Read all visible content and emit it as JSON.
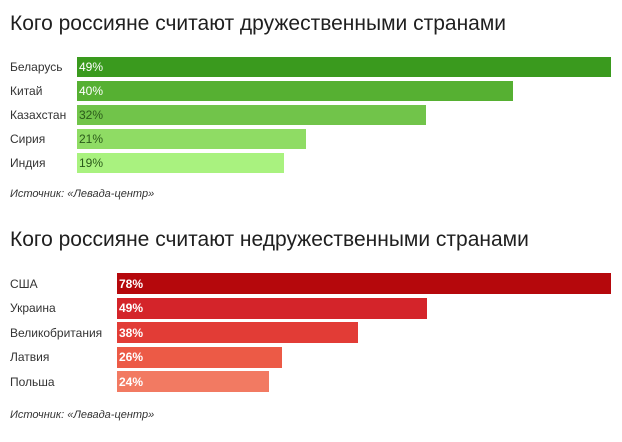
{
  "chart_data": [
    {
      "type": "bar",
      "orientation": "horizontal",
      "title": "Кого россияне считают дружественными странами",
      "categories": [
        "Беларусь",
        "Китай",
        "Казахстан",
        "Сирия",
        "Индия"
      ],
      "values": [
        49,
        40,
        32,
        21,
        19
      ],
      "value_labels": [
        "49%",
        "40%",
        "32%",
        "21%",
        "19%"
      ],
      "unit": "%",
      "xlim": [
        0,
        49
      ],
      "grid": false,
      "colors": [
        "#3a9a1e",
        "#56b032",
        "#71c44a",
        "#8fdc64",
        "#a9f27f"
      ],
      "label_colors": [
        "#ffffff",
        "#ffffff",
        "#2b5a1a",
        "#2b5a1a",
        "#2b5a1a"
      ],
      "source": "Источник: «Левада-центр»"
    },
    {
      "type": "bar",
      "orientation": "horizontal",
      "title": "Кого россияне считают недружественными странами",
      "categories": [
        "США",
        "Украина",
        "Великобритания",
        "Латвия",
        "Польша"
      ],
      "values": [
        78,
        49,
        38,
        26,
        24
      ],
      "value_labels": [
        "78%",
        "49%",
        "38%",
        "26%",
        "24%"
      ],
      "unit": "%",
      "xlim": [
        0,
        78
      ],
      "grid": false,
      "colors": [
        "#b5080c",
        "#d4242a",
        "#e23c36",
        "#ec5a46",
        "#f27a62"
      ],
      "label_colors": [
        "#ffffff",
        "#ffffff",
        "#ffffff",
        "#ffffff",
        "#ffffff"
      ],
      "source": "Источник: «Левада-центр»"
    }
  ]
}
